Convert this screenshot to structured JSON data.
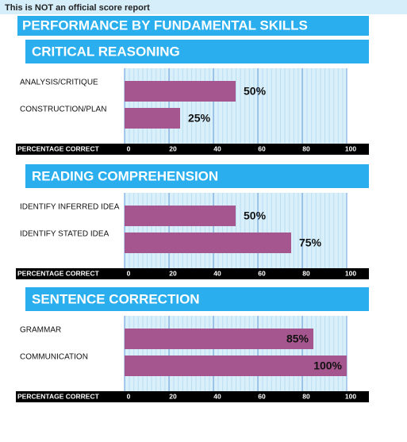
{
  "notice": "This is NOT an official score report",
  "title": "PERFORMANCE BY FUNDAMENTAL SKILLS",
  "chart_data": [
    {
      "type": "bar",
      "orientation": "horizontal",
      "title": "CRITICAL REASONING",
      "categories": [
        "ANALYSIS/CRITIQUE",
        "CONSTRUCTION/PLAN"
      ],
      "values": [
        50,
        25
      ],
      "value_labels": [
        "50%",
        "25%"
      ],
      "color": "#a6568f",
      "xlabel": "PERCENTAGE CORRECT",
      "xlim": [
        0,
        100
      ],
      "xticks": [
        0,
        20,
        40,
        60,
        80,
        100
      ],
      "grid": true
    },
    {
      "type": "bar",
      "orientation": "horizontal",
      "title": "READING COMPREHENSION",
      "categories": [
        "IDENTIFY INFERRED IDEA",
        "IDENTIFY STATED IDEA"
      ],
      "values": [
        50,
        75
      ],
      "value_labels": [
        "50%",
        "75%"
      ],
      "color": "#a6568f",
      "xlabel": "PERCENTAGE CORRECT",
      "xlim": [
        0,
        100
      ],
      "xticks": [
        0,
        20,
        40,
        60,
        80,
        100
      ],
      "grid": true
    },
    {
      "type": "bar",
      "orientation": "horizontal",
      "title": "SENTENCE CORRECTION",
      "categories": [
        "GRAMMAR",
        "COMMUNICATION"
      ],
      "values": [
        85,
        100
      ],
      "value_labels": [
        "85%",
        "100%"
      ],
      "color": "#a6568f",
      "xlabel": "PERCENTAGE CORRECT",
      "xlim": [
        0,
        100
      ],
      "xticks": [
        0,
        20,
        40,
        60,
        80,
        100
      ],
      "grid": true
    }
  ]
}
